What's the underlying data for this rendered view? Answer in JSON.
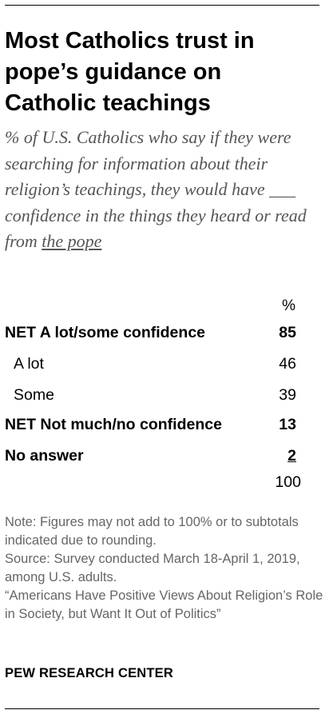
{
  "title": "Most Catholics trust in pope’s guidance on Catholic teachings",
  "subtitle_pre": "% of U.S. Catholics who say if they were searching for information about their religion’s teachings, they would have ___ confidence in the things they heard or read from ",
  "subtitle_link": "the pope",
  "chart_data": {
    "type": "table",
    "column_header": "%",
    "rows": [
      {
        "label": "NET A lot/some confidence",
        "value": 85,
        "bold": true,
        "indent": false
      },
      {
        "label": "A lot",
        "value": 46,
        "bold": false,
        "indent": true
      },
      {
        "label": "Some",
        "value": 39,
        "bold": false,
        "indent": true
      },
      {
        "label": "NET Not much/no confidence",
        "value": 13,
        "bold": true,
        "indent": false
      },
      {
        "label": "No answer",
        "value": 2,
        "bold": true,
        "indent": false,
        "underline": true
      }
    ],
    "total": "100"
  },
  "notes": {
    "note": "Note: Figures may not add to 100% or to subtotals indicated due to rounding.",
    "source": "Source: Survey conducted March 18-April 1, 2019, among U.S. adults.",
    "report": "“Americans Have Positive Views About Religion’s Role in Society, but Want It Out of Politics”"
  },
  "footer": "PEW RESEARCH CENTER"
}
